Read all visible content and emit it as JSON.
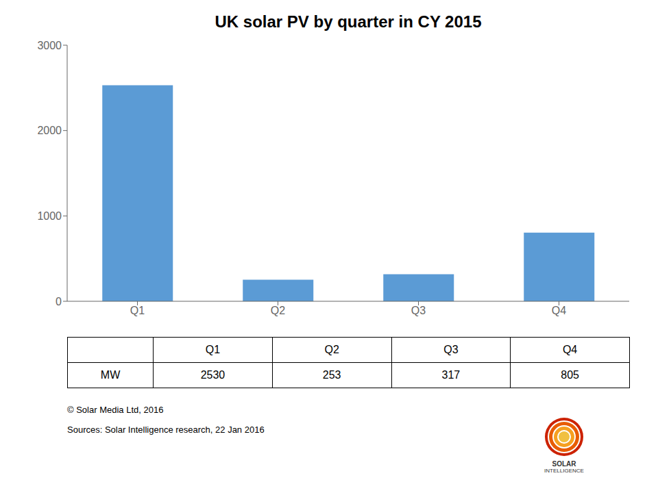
{
  "chart_data": {
    "type": "bar",
    "title": "UK solar PV by quarter in CY 2015",
    "categories": [
      "Q1",
      "Q2",
      "Q3",
      "Q4"
    ],
    "values": [
      2530,
      253,
      317,
      805
    ],
    "color": "#5B9BD5",
    "ylim": [
      0,
      3000
    ],
    "yticks": [
      0,
      1000,
      2000,
      3000
    ],
    "grid": false,
    "annotations": [
      "MW",
      "© Solar Media Ltd, 2016",
      "Sources: Solar Intelligence research, 22 Jan 2016",
      "SOLAR",
      "INTELLIGENCE"
    ]
  }
}
